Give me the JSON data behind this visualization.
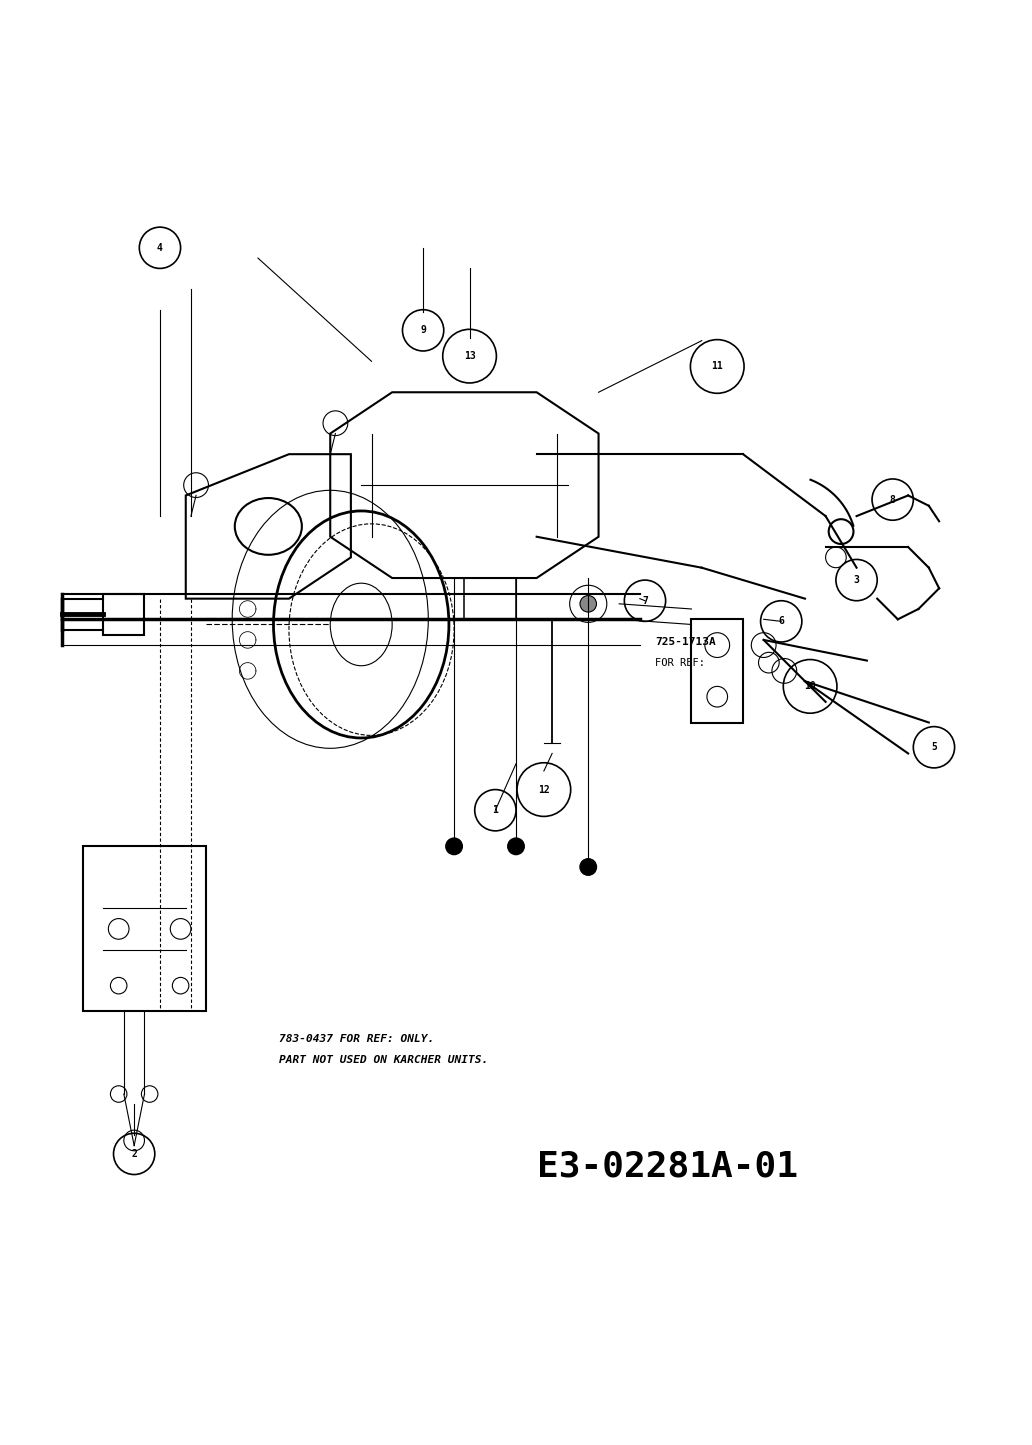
{
  "bg_color": "#ffffff",
  "line_color": "#000000",
  "title_code": "E3-02281A-01",
  "ref_text1": "725-1713A",
  "ref_text2": "FOR REF:",
  "ref_text3": "783-0437 FOR REF: ONLY.",
  "ref_text4": "PART NOT USED ON KARCHER UNITS.",
  "figsize": [
    10.32,
    14.45
  ],
  "dpi": 100
}
